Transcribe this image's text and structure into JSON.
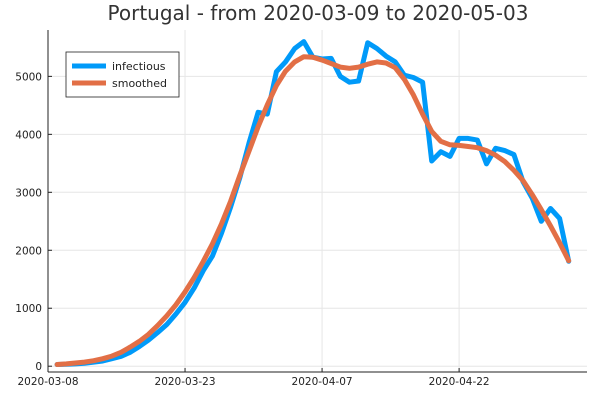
{
  "chart_data": {
    "type": "line",
    "title": "Portugal - from 2020-03-09 to 2020-05-03",
    "xlabel": "",
    "ylabel": "",
    "x_start": "2020-03-09",
    "x_ticks": [
      {
        "label": "2020-03-08",
        "date": "2020-03-08"
      },
      {
        "label": "2020-03-23",
        "date": "2020-03-23"
      },
      {
        "label": "2020-04-07",
        "date": "2020-04-07"
      },
      {
        "label": "2020-04-22",
        "date": "2020-04-22"
      }
    ],
    "y_ticks": [
      0,
      1000,
      2000,
      3000,
      4000,
      5000
    ],
    "xlim": [
      "2020-03-08",
      "2020-05-06"
    ],
    "ylim": [
      -100,
      5800
    ],
    "grid": true,
    "legend_position": "top-left",
    "series": [
      {
        "name": "infectious",
        "color": "#009af9",
        "values": [
          30,
          35,
          40,
          50,
          70,
          90,
          130,
          170,
          240,
          340,
          450,
          580,
          720,
          900,
          1100,
          1350,
          1650,
          1900,
          2300,
          2750,
          3250,
          3850,
          4380,
          4350,
          5080,
          5250,
          5480,
          5600,
          5330,
          5300,
          5310,
          5000,
          4900,
          4920,
          5580,
          5480,
          5350,
          5250,
          5020,
          4980,
          4900,
          3540,
          3700,
          3620,
          3930,
          3930,
          3900,
          3490,
          3760,
          3720,
          3650,
          3180,
          2900,
          2500,
          2720,
          2550,
          1810
        ]
      },
      {
        "name": "smoothed",
        "color": "#e26f46",
        "values": [
          30,
          40,
          55,
          70,
          95,
          130,
          175,
          240,
          330,
          430,
          550,
          700,
          870,
          1060,
          1280,
          1530,
          1810,
          2110,
          2460,
          2850,
          3290,
          3710,
          4130,
          4510,
          4840,
          5090,
          5250,
          5340,
          5330,
          5280,
          5220,
          5160,
          5140,
          5160,
          5210,
          5250,
          5230,
          5150,
          4950,
          4680,
          4350,
          4050,
          3880,
          3820,
          3810,
          3790,
          3770,
          3720,
          3640,
          3530,
          3380,
          3200,
          2960,
          2700,
          2420,
          2130,
          1820
        ]
      }
    ]
  }
}
